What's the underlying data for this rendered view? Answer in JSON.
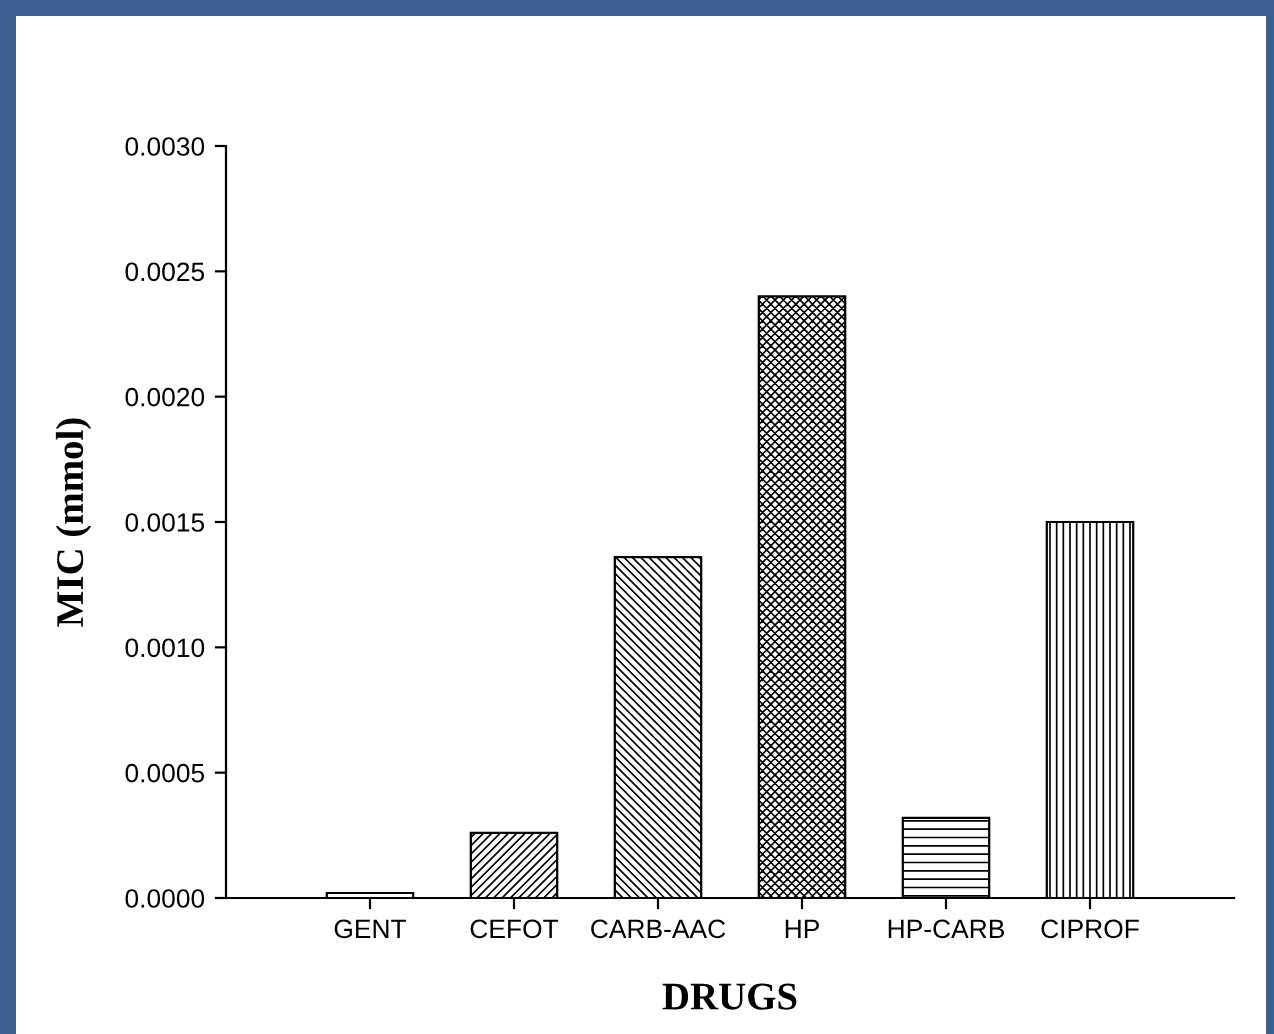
{
  "chart_data": {
    "type": "bar",
    "xlabel": "DRUGS",
    "ylabel": "MIC (mmol)",
    "categories": [
      "GENT",
      "CEFOT",
      "CARB-AAC",
      "HP",
      "HP-CARB",
      "CIPROF"
    ],
    "values": [
      2e-05,
      0.00026,
      0.00136,
      0.0024,
      0.00032,
      0.0015
    ],
    "color": "#000000",
    "ylim": [
      0,
      0.003
    ],
    "yticks": [
      {
        "value": 0,
        "label": "0.0000"
      },
      {
        "value": 0.0005,
        "label": "0.0005"
      },
      {
        "value": 0.001,
        "label": "0.0010"
      },
      {
        "value": 0.0015,
        "label": "0.0015"
      },
      {
        "value": 0.002,
        "label": "0.0020"
      },
      {
        "value": 0.0025,
        "label": "0.0025"
      },
      {
        "value": 0.003,
        "label": "0.0030"
      }
    ],
    "grid": false,
    "legend": false
  }
}
